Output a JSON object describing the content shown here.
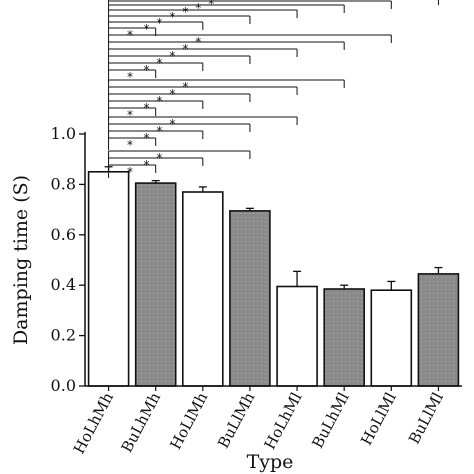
{
  "chart_data": {
    "type": "bar",
    "categories": [
      "HoLhMh",
      "BuLhMh",
      "HoLlMh",
      "BuLlMh",
      "HoLhMl",
      "BuLhMl",
      "HoLlMl",
      "BuLlMl"
    ],
    "values": [
      0.85,
      0.805,
      0.77,
      0.695,
      0.395,
      0.385,
      0.38,
      0.445
    ],
    "errors": [
      0.02,
      0.01,
      0.02,
      0.01,
      0.06,
      0.015,
      0.035,
      0.025
    ],
    "fills": [
      "white",
      "gray",
      "white",
      "gray",
      "white",
      "gray",
      "white",
      "gray"
    ],
    "xlabel": "Type",
    "ylabel": "Damping time (S)",
    "ylim": [
      0,
      1.0
    ],
    "yticks": [
      "0.0",
      "0.2",
      "0.4",
      "0.6",
      "0.8",
      "1.0"
    ],
    "grid": false,
    "significance_marker": "*",
    "colors": {
      "gray_bar": "#8a8a8a",
      "white_bar": "#ffffff",
      "ink": "#111111"
    }
  }
}
